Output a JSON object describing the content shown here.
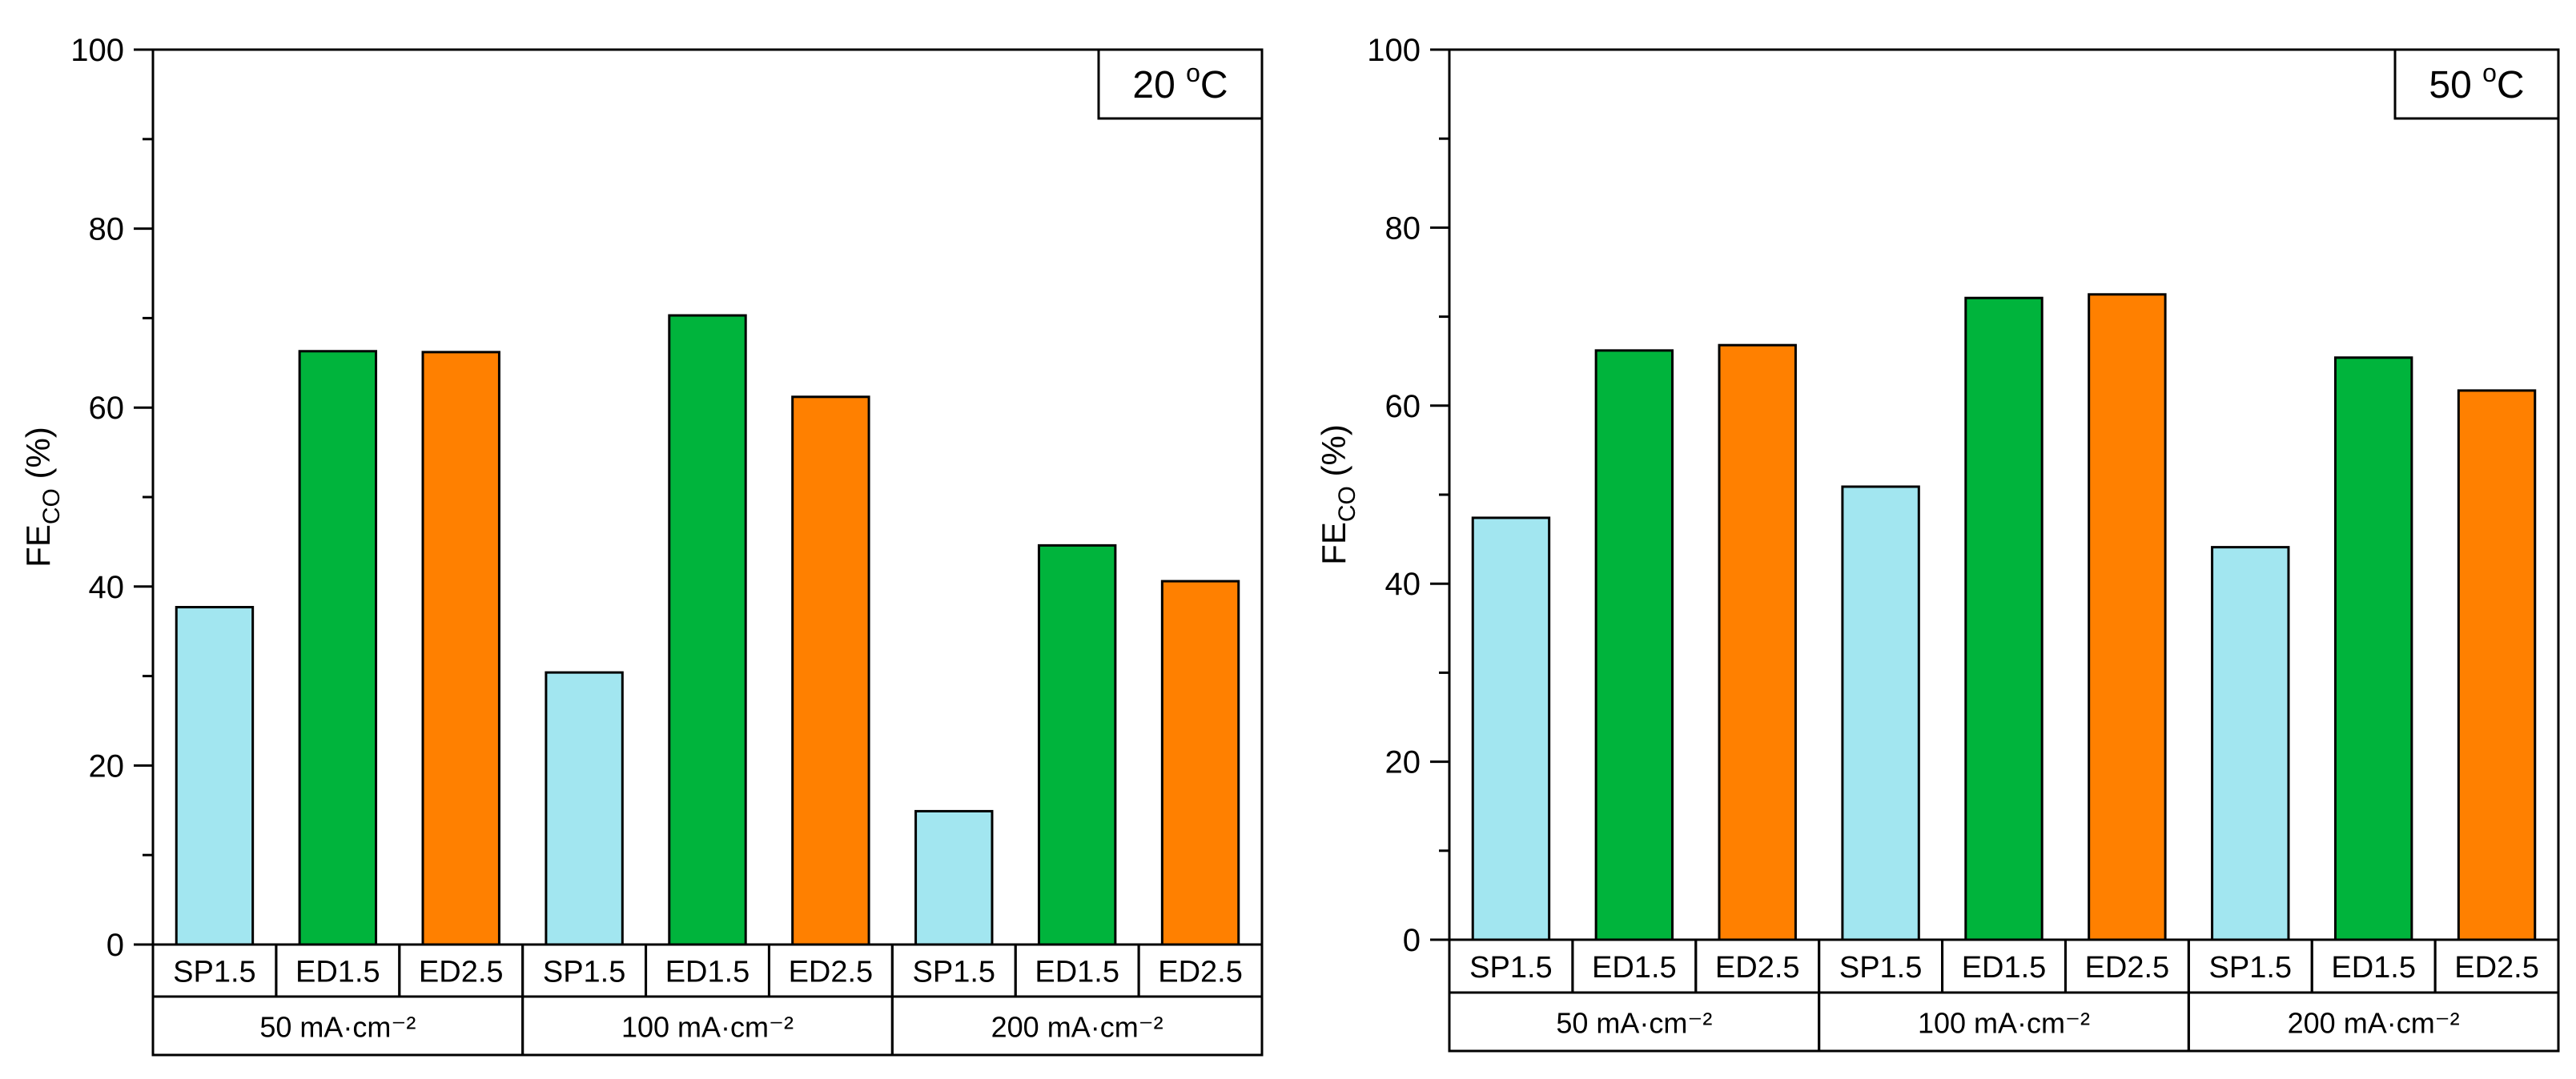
{
  "chart_data": [
    {
      "type": "bar",
      "title": "",
      "corner_label": {
        "prefix": "20 ",
        "sup": "o",
        "unit": "C"
      },
      "ylabel": {
        "base": "FE",
        "sub": "CO",
        "suffix": " (%)"
      },
      "xlabel": "",
      "ylim": [
        0,
        100
      ],
      "yticks": [
        0,
        20,
        40,
        60,
        80,
        100
      ],
      "groups": [
        {
          "label": "50 mA·cm⁻²",
          "bars": [
            {
              "label": "SP1.5",
              "value": 37.7,
              "color": "#a2e6f0"
            },
            {
              "label": "ED1.5",
              "value": 66.3,
              "color": "#00b43c"
            },
            {
              "label": "ED2.5",
              "value": 66.2,
              "color": "#ff8000"
            }
          ]
        },
        {
          "label": "100 mA·cm⁻²",
          "bars": [
            {
              "label": "SP1.5",
              "value": 30.4,
              "color": "#a2e6f0"
            },
            {
              "label": "ED1.5",
              "value": 70.3,
              "color": "#00b43c"
            },
            {
              "label": "ED2.5",
              "value": 61.2,
              "color": "#ff8000"
            }
          ]
        },
        {
          "label": "200 mA·cm⁻²",
          "bars": [
            {
              "label": "SP1.5",
              "value": 14.9,
              "color": "#a2e6f0"
            },
            {
              "label": "ED1.5",
              "value": 44.6,
              "color": "#00b43c"
            },
            {
              "label": "ED2.5",
              "value": 40.6,
              "color": "#ff8000"
            }
          ]
        }
      ]
    },
    {
      "type": "bar",
      "title": "",
      "corner_label": {
        "prefix": "50 ",
        "sup": "o",
        "unit": "C"
      },
      "ylabel": {
        "base": "FE",
        "sub": "CO",
        "suffix": " (%)"
      },
      "xlabel": "",
      "ylim": [
        0,
        100
      ],
      "yticks": [
        0,
        20,
        40,
        60,
        80,
        100
      ],
      "groups": [
        {
          "label": "50 mA·cm⁻²",
          "bars": [
            {
              "label": "SP1.5",
              "value": 47.4,
              "color": "#a2e6f0"
            },
            {
              "label": "ED1.5",
              "value": 66.2,
              "color": "#00b43c"
            },
            {
              "label": "ED2.5",
              "value": 66.8,
              "color": "#ff8000"
            }
          ]
        },
        {
          "label": "100 mA·cm⁻²",
          "bars": [
            {
              "label": "SP1.5",
              "value": 50.9,
              "color": "#a2e6f0"
            },
            {
              "label": "ED1.5",
              "value": 72.1,
              "color": "#00b43c"
            },
            {
              "label": "ED2.5",
              "value": 72.5,
              "color": "#ff8000"
            }
          ]
        },
        {
          "label": "200 mA·cm⁻²",
          "bars": [
            {
              "label": "SP1.5",
              "value": 44.1,
              "color": "#a2e6f0"
            },
            {
              "label": "ED1.5",
              "value": 65.4,
              "color": "#00b43c"
            },
            {
              "label": "ED2.5",
              "value": 61.7,
              "color": "#ff8000"
            }
          ]
        }
      ]
    }
  ]
}
